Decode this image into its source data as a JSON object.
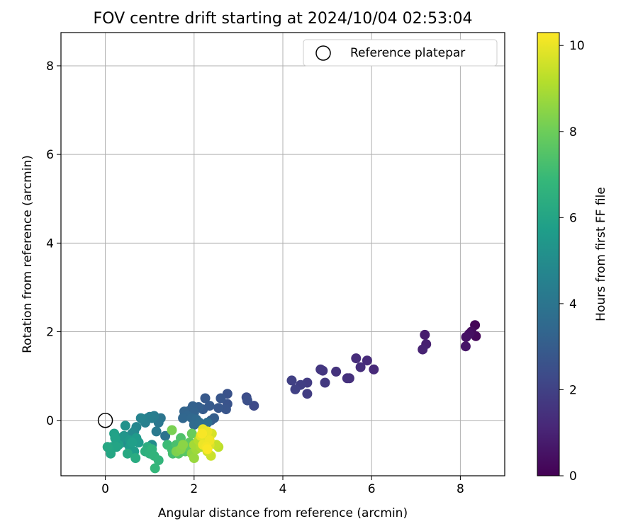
{
  "chart_data": {
    "type": "scatter",
    "title": "FOV centre drift starting at 2024/10/04 02:53:04",
    "xlabel": "Angular distance from reference (arcmin)",
    "ylabel": "Rotation from reference (arcmin)",
    "xlim": [
      -1,
      9
    ],
    "ylim": [
      -1.25,
      8.75
    ],
    "xticks": [
      0,
      2,
      4,
      6,
      8
    ],
    "yticks": [
      0,
      2,
      4,
      6,
      8
    ],
    "grid": true,
    "legend": {
      "position": "top-right",
      "entries": [
        "Reference platepar"
      ]
    },
    "reference_point": {
      "name": "Reference platepar",
      "x": 0,
      "y": 0
    },
    "colorbar": {
      "label": "Hours from first FF file",
      "range": [
        0,
        10.3
      ],
      "ticks": [
        0,
        2,
        4,
        6,
        8,
        10
      ],
      "colormap": "viridis"
    },
    "series": [
      {
        "color_by": "Hours from first FF file",
        "points": [
          {
            "x": 8.33,
            "y": 2.15,
            "c": 0.1
          },
          {
            "x": 8.35,
            "y": 1.9,
            "c": 0.2
          },
          {
            "x": 8.25,
            "y": 2.0,
            "c": 0.3
          },
          {
            "x": 8.2,
            "y": 1.95,
            "c": 0.4
          },
          {
            "x": 8.13,
            "y": 1.88,
            "c": 0.5
          },
          {
            "x": 8.12,
            "y": 1.67,
            "c": 0.6
          },
          {
            "x": 7.2,
            "y": 1.93,
            "c": 0.8
          },
          {
            "x": 7.23,
            "y": 1.72,
            "c": 0.9
          },
          {
            "x": 7.15,
            "y": 1.6,
            "c": 1.0
          },
          {
            "x": 6.05,
            "y": 1.15,
            "c": 1.2
          },
          {
            "x": 5.9,
            "y": 1.35,
            "c": 1.25
          },
          {
            "x": 5.65,
            "y": 1.4,
            "c": 1.3
          },
          {
            "x": 5.75,
            "y": 1.2,
            "c": 1.35
          },
          {
            "x": 5.5,
            "y": 0.95,
            "c": 1.4
          },
          {
            "x": 5.45,
            "y": 0.95,
            "c": 1.45
          },
          {
            "x": 5.2,
            "y": 1.1,
            "c": 1.5
          },
          {
            "x": 4.9,
            "y": 1.12,
            "c": 1.6
          },
          {
            "x": 4.85,
            "y": 1.15,
            "c": 1.65
          },
          {
            "x": 4.95,
            "y": 0.85,
            "c": 1.7
          },
          {
            "x": 4.55,
            "y": 0.85,
            "c": 1.8
          },
          {
            "x": 4.55,
            "y": 0.6,
            "c": 1.85
          },
          {
            "x": 4.4,
            "y": 0.8,
            "c": 1.9
          },
          {
            "x": 4.2,
            "y": 0.9,
            "c": 1.95
          },
          {
            "x": 4.28,
            "y": 0.7,
            "c": 2.0
          },
          {
            "x": 3.35,
            "y": 0.33,
            "c": 2.3
          },
          {
            "x": 3.18,
            "y": 0.52,
            "c": 2.4
          },
          {
            "x": 3.2,
            "y": 0.45,
            "c": 2.5
          },
          {
            "x": 2.75,
            "y": 0.6,
            "c": 2.6
          },
          {
            "x": 2.75,
            "y": 0.37,
            "c": 2.65
          },
          {
            "x": 2.72,
            "y": 0.25,
            "c": 2.7
          },
          {
            "x": 2.6,
            "y": 0.5,
            "c": 2.75
          },
          {
            "x": 2.55,
            "y": 0.28,
            "c": 2.8
          },
          {
            "x": 2.25,
            "y": 0.5,
            "c": 2.85
          },
          {
            "x": 2.35,
            "y": 0.33,
            "c": 2.9
          },
          {
            "x": 2.2,
            "y": 0.25,
            "c": 2.95
          },
          {
            "x": 2.38,
            "y": 0.0,
            "c": 3.0
          },
          {
            "x": 2.45,
            "y": 0.05,
            "c": 3.05
          },
          {
            "x": 2.1,
            "y": 0.3,
            "c": 3.1
          },
          {
            "x": 1.97,
            "y": 0.32,
            "c": 3.15
          },
          {
            "x": 1.9,
            "y": 0.22,
            "c": 3.2
          },
          {
            "x": 2.0,
            "y": 0.18,
            "c": 3.25
          },
          {
            "x": 1.78,
            "y": 0.2,
            "c": 3.3
          },
          {
            "x": 1.85,
            "y": 0.1,
            "c": 3.35
          },
          {
            "x": 1.75,
            "y": 0.05,
            "c": 3.4
          },
          {
            "x": 1.95,
            "y": 0.05,
            "c": 3.45
          },
          {
            "x": 2.05,
            "y": 0.02,
            "c": 3.5
          },
          {
            "x": 2.0,
            "y": -0.1,
            "c": 3.55
          },
          {
            "x": 2.12,
            "y": -0.05,
            "c": 3.6
          },
          {
            "x": 2.18,
            "y": -0.1,
            "c": 3.65
          },
          {
            "x": 2.3,
            "y": -0.05,
            "c": 3.7
          },
          {
            "x": 1.35,
            "y": -0.35,
            "c": 3.9
          },
          {
            "x": 1.25,
            "y": 0.05,
            "c": 4.0
          },
          {
            "x": 1.2,
            "y": -0.05,
            "c": 4.1
          },
          {
            "x": 1.15,
            "y": -0.25,
            "c": 4.2
          },
          {
            "x": 1.1,
            "y": 0.1,
            "c": 4.3
          },
          {
            "x": 1.05,
            "y": 0.05,
            "c": 4.35
          },
          {
            "x": 1.0,
            "y": 0.08,
            "c": 4.4
          },
          {
            "x": 0.95,
            "y": 0.05,
            "c": 4.45
          },
          {
            "x": 0.9,
            "y": -0.05,
            "c": 4.5
          },
          {
            "x": 0.85,
            "y": 0.02,
            "c": 4.55
          },
          {
            "x": 0.8,
            "y": 0.05,
            "c": 4.6
          },
          {
            "x": 0.7,
            "y": -0.15,
            "c": 4.7
          },
          {
            "x": 0.65,
            "y": -0.25,
            "c": 4.8
          },
          {
            "x": 0.6,
            "y": -0.3,
            "c": 4.9
          },
          {
            "x": 1.05,
            "y": -0.55,
            "c": 5.0
          },
          {
            "x": 0.45,
            "y": -0.5,
            "c": 5.1
          },
          {
            "x": 0.45,
            "y": -0.12,
            "c": 5.2
          },
          {
            "x": 0.42,
            "y": -0.35,
            "c": 5.3
          },
          {
            "x": 0.35,
            "y": -0.4,
            "c": 5.4
          },
          {
            "x": 0.55,
            "y": -0.45,
            "c": 5.5
          },
          {
            "x": 0.7,
            "y": -0.4,
            "c": 5.55
          },
          {
            "x": 0.75,
            "y": -0.5,
            "c": 5.6
          },
          {
            "x": 0.55,
            "y": -0.6,
            "c": 5.65
          },
          {
            "x": 0.65,
            "y": -0.7,
            "c": 5.7
          },
          {
            "x": 0.6,
            "y": -0.5,
            "c": 5.75
          },
          {
            "x": 0.3,
            "y": -0.55,
            "c": 5.8
          },
          {
            "x": 0.2,
            "y": -0.3,
            "c": 5.85
          },
          {
            "x": 0.22,
            "y": -0.4,
            "c": 5.9
          },
          {
            "x": 0.15,
            "y": -0.6,
            "c": 5.95
          },
          {
            "x": 0.25,
            "y": -0.6,
            "c": 6.0
          },
          {
            "x": 0.1,
            "y": -0.65,
            "c": 6.05
          },
          {
            "x": 0.12,
            "y": -0.75,
            "c": 6.1
          },
          {
            "x": 0.05,
            "y": -0.6,
            "c": 6.15
          },
          {
            "x": 0.5,
            "y": -0.75,
            "c": 6.2
          },
          {
            "x": 0.68,
            "y": -0.85,
            "c": 6.3
          },
          {
            "x": 0.95,
            "y": -0.6,
            "c": 6.4
          },
          {
            "x": 0.9,
            "y": -0.7,
            "c": 6.5
          },
          {
            "x": 1.0,
            "y": -0.75,
            "c": 6.6
          },
          {
            "x": 1.05,
            "y": -0.65,
            "c": 6.65
          },
          {
            "x": 1.1,
            "y": -0.8,
            "c": 6.7
          },
          {
            "x": 1.2,
            "y": -0.9,
            "c": 6.75
          },
          {
            "x": 1.12,
            "y": -1.08,
            "c": 6.8
          },
          {
            "x": 1.4,
            "y": -0.55,
            "c": 7.0
          },
          {
            "x": 1.5,
            "y": -0.65,
            "c": 7.1
          },
          {
            "x": 1.52,
            "y": -0.75,
            "c": 7.2
          },
          {
            "x": 1.6,
            "y": -0.55,
            "c": 7.3
          },
          {
            "x": 1.7,
            "y": -0.4,
            "c": 7.4
          },
          {
            "x": 1.65,
            "y": -0.75,
            "c": 7.5
          },
          {
            "x": 1.8,
            "y": -0.7,
            "c": 7.6
          },
          {
            "x": 1.9,
            "y": -0.5,
            "c": 7.7
          },
          {
            "x": 1.85,
            "y": -0.6,
            "c": 7.8
          },
          {
            "x": 1.95,
            "y": -0.3,
            "c": 7.9
          },
          {
            "x": 1.5,
            "y": -0.22,
            "c": 8.2
          },
          {
            "x": 1.6,
            "y": -0.7,
            "c": 8.3
          },
          {
            "x": 1.7,
            "y": -0.65,
            "c": 8.4
          },
          {
            "x": 1.75,
            "y": -0.55,
            "c": 8.5
          },
          {
            "x": 1.95,
            "y": -0.75,
            "c": 8.6
          },
          {
            "x": 2.0,
            "y": -0.85,
            "c": 8.7
          },
          {
            "x": 2.05,
            "y": -0.65,
            "c": 8.8
          },
          {
            "x": 2.0,
            "y": -0.55,
            "c": 8.9
          },
          {
            "x": 2.15,
            "y": -0.6,
            "c": 9.0
          },
          {
            "x": 2.1,
            "y": -0.45,
            "c": 9.1
          },
          {
            "x": 2.25,
            "y": -0.4,
            "c": 9.2
          },
          {
            "x": 2.55,
            "y": -0.6,
            "c": 9.3
          },
          {
            "x": 2.5,
            "y": -0.55,
            "c": 9.4
          },
          {
            "x": 2.38,
            "y": -0.8,
            "c": 9.5
          },
          {
            "x": 2.3,
            "y": -0.7,
            "c": 9.6
          },
          {
            "x": 2.4,
            "y": -0.3,
            "c": 9.7
          },
          {
            "x": 2.35,
            "y": -0.55,
            "c": 9.8
          },
          {
            "x": 2.25,
            "y": -0.5,
            "c": 9.85
          },
          {
            "x": 2.15,
            "y": -0.35,
            "c": 9.9
          },
          {
            "x": 2.2,
            "y": -0.2,
            "c": 9.95
          },
          {
            "x": 2.3,
            "y": -0.25,
            "c": 10.0
          },
          {
            "x": 2.2,
            "y": -0.55,
            "c": 10.05
          },
          {
            "x": 2.35,
            "y": -0.45,
            "c": 10.1
          },
          {
            "x": 2.28,
            "y": -0.6,
            "c": 10.15
          },
          {
            "x": 2.18,
            "y": -0.3,
            "c": 10.2
          },
          {
            "x": 2.3,
            "y": -0.65,
            "c": 10.25
          }
        ]
      }
    ]
  }
}
